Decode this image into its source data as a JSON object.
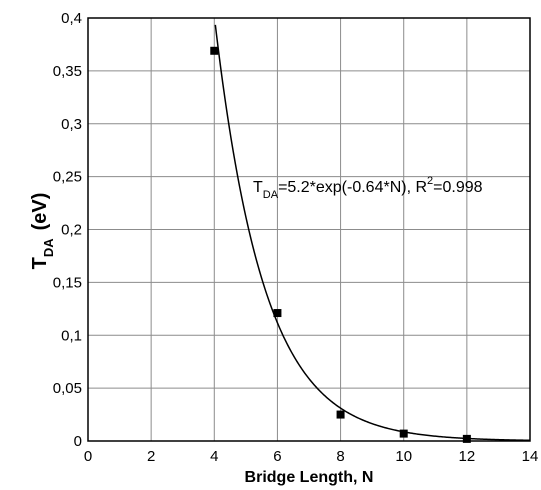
{
  "chart_data": {
    "type": "scatter",
    "xlabel": "Bridge Length, N",
    "ylabel": {
      "base": "T",
      "sub": "DA",
      "unit": "(eV)"
    },
    "xlim": [
      0,
      14
    ],
    "ylim": [
      0,
      0.4
    ],
    "x_ticks": [
      "0",
      "2",
      "4",
      "6",
      "8",
      "10",
      "12",
      "14"
    ],
    "y_ticks": [
      "0",
      "0,05",
      "0,1",
      "0,15",
      "0,2",
      "0,25",
      "0,3",
      "0,35",
      "0,4"
    ],
    "grid": true,
    "series": [
      {
        "marker": "square",
        "color": "#000000",
        "points": [
          {
            "x": 4,
            "y": 0.369
          },
          {
            "x": 6,
            "y": 0.121
          },
          {
            "x": 8,
            "y": 0.025
          },
          {
            "x": 10,
            "y": 0.007
          },
          {
            "x": 12,
            "y": 0.002
          }
        ]
      }
    ],
    "fit": {
      "a": 5.2,
      "b": -0.64,
      "x_range": [
        4,
        14
      ],
      "color": "#000000"
    },
    "annotation": {
      "t": "T",
      "t_sub": "DA",
      "formula": "=5.2*exp(-0.64*N), R",
      "r_sup": "2",
      "r_val": "=0.998"
    }
  }
}
